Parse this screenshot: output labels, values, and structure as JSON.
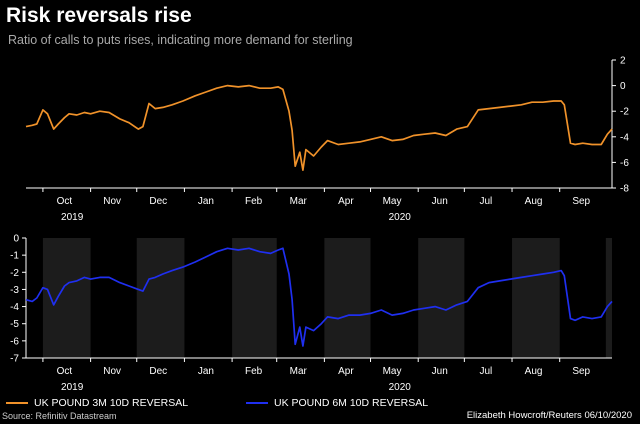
{
  "header": {
    "title": "Risk reversals rise",
    "subtitle": "Ratio of calls to puts rises, indicating more demand for sterling"
  },
  "footer": {
    "source": "Source: Refinitiv Datastream",
    "credit": "Elizabeth Howcroft/Reuters 06/10/2020"
  },
  "colors": {
    "orange": "#f0922a",
    "blue": "#1f2ff0",
    "band": "#1c1c1c"
  },
  "chart_data": [
    {
      "type": "line",
      "name": "top-chart",
      "series": [
        {
          "name": "UK POUND 3M 10D REVERSAL",
          "x": [
            "2019-09-20",
            "2019-09-24",
            "2019-09-27",
            "2019-10-01",
            "2019-10-04",
            "2019-10-08",
            "2019-10-11",
            "2019-10-15",
            "2019-10-18",
            "2019-10-23",
            "2019-10-28",
            "2019-11-01",
            "2019-11-07",
            "2019-11-13",
            "2019-11-20",
            "2019-11-26",
            "2019-12-02",
            "2019-12-05",
            "2019-12-09",
            "2019-12-13",
            "2019-12-18",
            "2019-12-24",
            "2019-12-31",
            "2020-01-08",
            "2020-01-15",
            "2020-01-22",
            "2020-01-29",
            "2020-02-05",
            "2020-02-12",
            "2020-02-19",
            "2020-02-26",
            "2020-03-02",
            "2020-03-05",
            "2020-03-09",
            "2020-03-11",
            "2020-03-13",
            "2020-03-16",
            "2020-03-18",
            "2020-03-20",
            "2020-03-25",
            "2020-03-30",
            "2020-04-03",
            "2020-04-10",
            "2020-04-17",
            "2020-04-24",
            "2020-05-01",
            "2020-05-08",
            "2020-05-15",
            "2020-05-22",
            "2020-05-29",
            "2020-06-05",
            "2020-06-12",
            "2020-06-19",
            "2020-06-26",
            "2020-07-03",
            "2020-07-10",
            "2020-07-17",
            "2020-07-24",
            "2020-07-31",
            "2020-08-07",
            "2020-08-14",
            "2020-08-21",
            "2020-08-28",
            "2020-09-02",
            "2020-09-04",
            "2020-09-08",
            "2020-09-11",
            "2020-09-16",
            "2020-09-22",
            "2020-09-28",
            "2020-10-02",
            "2020-10-05"
          ],
          "values": [
            -3.2,
            -3.1,
            -3.0,
            -1.9,
            -2.2,
            -3.4,
            -3.0,
            -2.5,
            -2.2,
            -2.3,
            -2.1,
            -2.2,
            -2.0,
            -2.1,
            -2.6,
            -2.9,
            -3.4,
            -3.2,
            -1.4,
            -1.8,
            -1.7,
            -1.5,
            -1.2,
            -0.8,
            -0.5,
            -0.2,
            0.0,
            -0.1,
            0.0,
            -0.2,
            -0.2,
            -0.1,
            -0.3,
            -2.0,
            -3.5,
            -6.3,
            -5.2,
            -6.6,
            -5.0,
            -5.5,
            -4.8,
            -4.3,
            -4.6,
            -4.5,
            -4.4,
            -4.2,
            -4.0,
            -4.3,
            -4.2,
            -3.9,
            -3.8,
            -3.7,
            -3.9,
            -3.4,
            -3.2,
            -1.9,
            -1.8,
            -1.7,
            -1.6,
            -1.5,
            -1.3,
            -1.3,
            -1.2,
            -1.2,
            -1.5,
            -4.5,
            -4.6,
            -4.5,
            -4.6,
            -4.6,
            -3.8,
            -3.4
          ]
        }
      ],
      "yticks": [
        2,
        0,
        -2,
        -4,
        -6,
        -8
      ],
      "ylim": [
        -8,
        2
      ],
      "xticks": [
        "Oct",
        "Nov",
        "Dec",
        "Jan",
        "Feb",
        "Mar",
        "Apr",
        "May",
        "Jun",
        "Jul",
        "Aug",
        "Sep"
      ],
      "year_labels": [
        "2019",
        "2020"
      ],
      "y_axis_side": "right",
      "grid": false
    },
    {
      "type": "line",
      "name": "bottom-chart",
      "series": [
        {
          "name": "UK POUND 6M 10D REVERSAL",
          "x": [
            "2019-09-20",
            "2019-09-24",
            "2019-09-27",
            "2019-10-01",
            "2019-10-04",
            "2019-10-08",
            "2019-10-11",
            "2019-10-15",
            "2019-10-18",
            "2019-10-23",
            "2019-10-28",
            "2019-11-01",
            "2019-11-07",
            "2019-11-13",
            "2019-11-20",
            "2019-11-26",
            "2019-12-02",
            "2019-12-05",
            "2019-12-09",
            "2019-12-13",
            "2019-12-18",
            "2019-12-24",
            "2019-12-31",
            "2020-01-08",
            "2020-01-15",
            "2020-01-22",
            "2020-01-29",
            "2020-02-05",
            "2020-02-12",
            "2020-02-19",
            "2020-02-26",
            "2020-03-02",
            "2020-03-05",
            "2020-03-09",
            "2020-03-11",
            "2020-03-13",
            "2020-03-16",
            "2020-03-18",
            "2020-03-20",
            "2020-03-25",
            "2020-03-30",
            "2020-04-03",
            "2020-04-10",
            "2020-04-17",
            "2020-04-24",
            "2020-05-01",
            "2020-05-08",
            "2020-05-15",
            "2020-05-22",
            "2020-05-29",
            "2020-06-05",
            "2020-06-12",
            "2020-06-19",
            "2020-06-26",
            "2020-07-03",
            "2020-07-10",
            "2020-07-17",
            "2020-07-24",
            "2020-07-31",
            "2020-08-07",
            "2020-08-14",
            "2020-08-21",
            "2020-08-28",
            "2020-09-02",
            "2020-09-04",
            "2020-09-08",
            "2020-09-11",
            "2020-09-16",
            "2020-09-22",
            "2020-09-28",
            "2020-10-02",
            "2020-10-05"
          ],
          "values": [
            -3.6,
            -3.7,
            -3.5,
            -2.9,
            -3.0,
            -3.9,
            -3.4,
            -2.8,
            -2.6,
            -2.5,
            -2.3,
            -2.4,
            -2.3,
            -2.3,
            -2.6,
            -2.8,
            -3.0,
            -3.1,
            -2.4,
            -2.3,
            -2.1,
            -1.9,
            -1.7,
            -1.4,
            -1.1,
            -0.8,
            -0.6,
            -0.7,
            -0.6,
            -0.8,
            -0.9,
            -0.7,
            -0.6,
            -2.1,
            -3.6,
            -6.2,
            -5.2,
            -6.3,
            -5.2,
            -5.4,
            -5.0,
            -4.6,
            -4.7,
            -4.5,
            -4.5,
            -4.4,
            -4.2,
            -4.5,
            -4.4,
            -4.2,
            -4.1,
            -4.0,
            -4.2,
            -3.9,
            -3.7,
            -2.9,
            -2.6,
            -2.5,
            -2.4,
            -2.3,
            -2.2,
            -2.1,
            -2.0,
            -1.9,
            -2.2,
            -4.7,
            -4.8,
            -4.6,
            -4.7,
            -4.6,
            -4.0,
            -3.7
          ]
        }
      ],
      "yticks": [
        0,
        -1,
        -2,
        -3,
        -4,
        -5,
        -6,
        -7
      ],
      "ylim": [
        -7,
        0
      ],
      "xticks": [
        "Oct",
        "Nov",
        "Dec",
        "Jan",
        "Feb",
        "Mar",
        "Apr",
        "May",
        "Jun",
        "Jul",
        "Aug",
        "Sep"
      ],
      "year_labels": [
        "2019",
        "2020"
      ],
      "y_axis_side": "left",
      "grid": false
    }
  ]
}
